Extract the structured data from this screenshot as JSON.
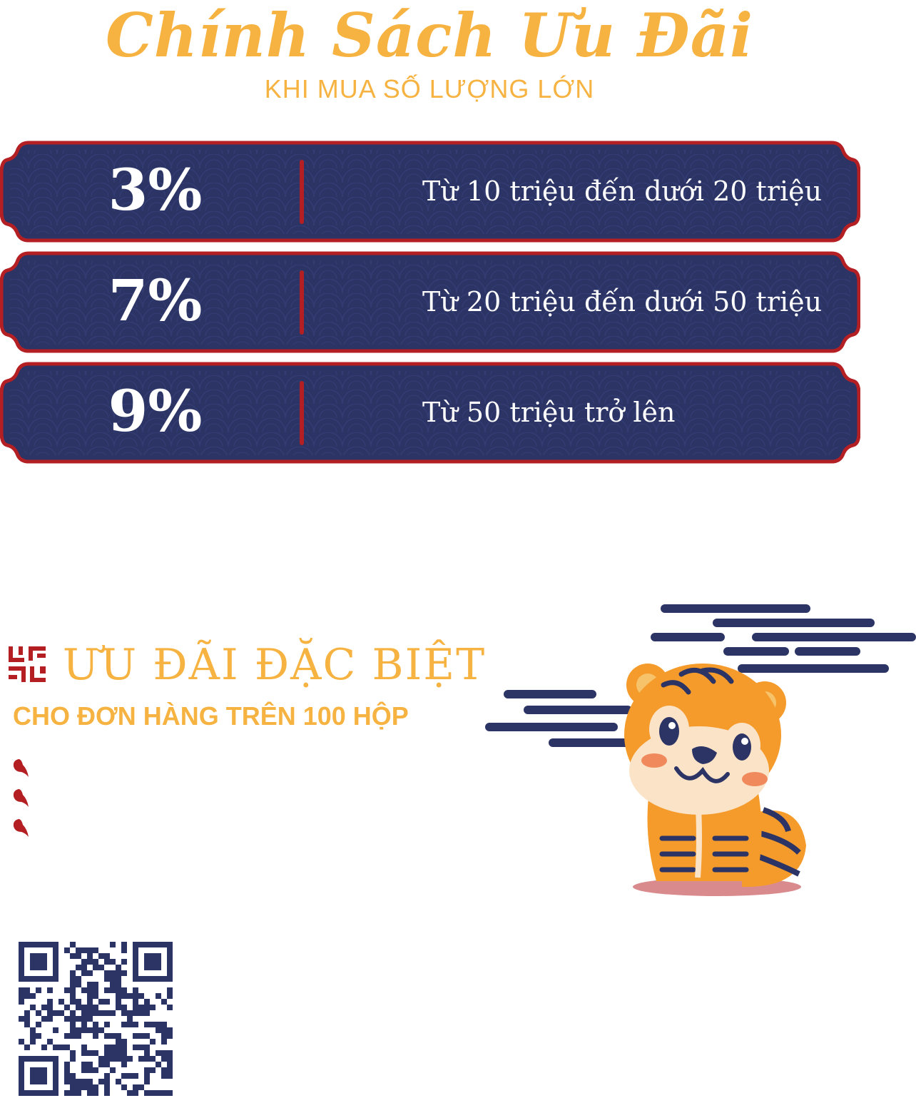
{
  "header": {
    "title": "Chính Sách Ưu Đãi",
    "subtitle": "KHI MUA SỐ LƯỢNG LỚN"
  },
  "tiers": [
    {
      "percent": "3%",
      "range": "Từ 10 triệu đến dưới 20 triệu"
    },
    {
      "percent": "7%",
      "range": "Từ 20 triệu đến dưới 50 triệu"
    },
    {
      "percent": "9%",
      "range": "Từ 50 triệu trở lên"
    }
  ],
  "special": {
    "title": "ƯU ĐÃI ĐẶC BIỆT",
    "subtitle": "CHO ĐƠN HÀNG TRÊN 100 HỘP"
  },
  "colors": {
    "accent_gold": "#f6b341",
    "plate_navy": "#2b3464",
    "plate_border": "#b41f24",
    "tiger_orange": "#f59b2b"
  },
  "icons": [
    "pattern-icon",
    "bullet-icon",
    "qr-code",
    "tiger-illustration"
  ]
}
